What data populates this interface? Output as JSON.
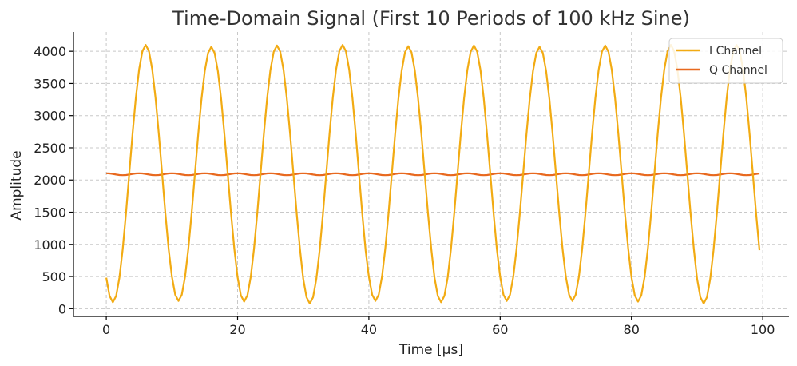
{
  "chart_data": {
    "type": "line",
    "title": "Time-Domain Signal (First 10 Periods of 100 kHz Sine)",
    "xlabel": "Time [µs]",
    "ylabel": "Amplitude",
    "xlim": [
      -5,
      104
    ],
    "ylim": [
      -120,
      4300
    ],
    "xticks": [
      0,
      20,
      40,
      60,
      80,
      100
    ],
    "yticks": [
      0,
      500,
      1000,
      1500,
      2000,
      2500,
      3000,
      3500,
      4000
    ],
    "grid": true,
    "legend_position": "top-right",
    "sample_interval_us": 0.5,
    "x_start": 0,
    "x_end": 99.5,
    "series": [
      {
        "name": "I Channel",
        "color": "#f2ab13",
        "waveform": "sine",
        "offset": 2095,
        "amplitude": 2000,
        "period_us": 10,
        "phase_start": "trough near t=1 µs",
        "peak_values": [
          4100,
          4070,
          4090,
          4100,
          4080,
          4090,
          4070,
          4090,
          4100,
          4100
        ],
        "trough_values": [
          100,
          120,
          110,
          80,
          120,
          100,
          120,
          120,
          110,
          80
        ]
      },
      {
        "name": "Q Channel",
        "color": "#e8691f",
        "waveform": "ripple",
        "offset": 2090,
        "amplitude": 15,
        "period_us": 5
      }
    ]
  }
}
